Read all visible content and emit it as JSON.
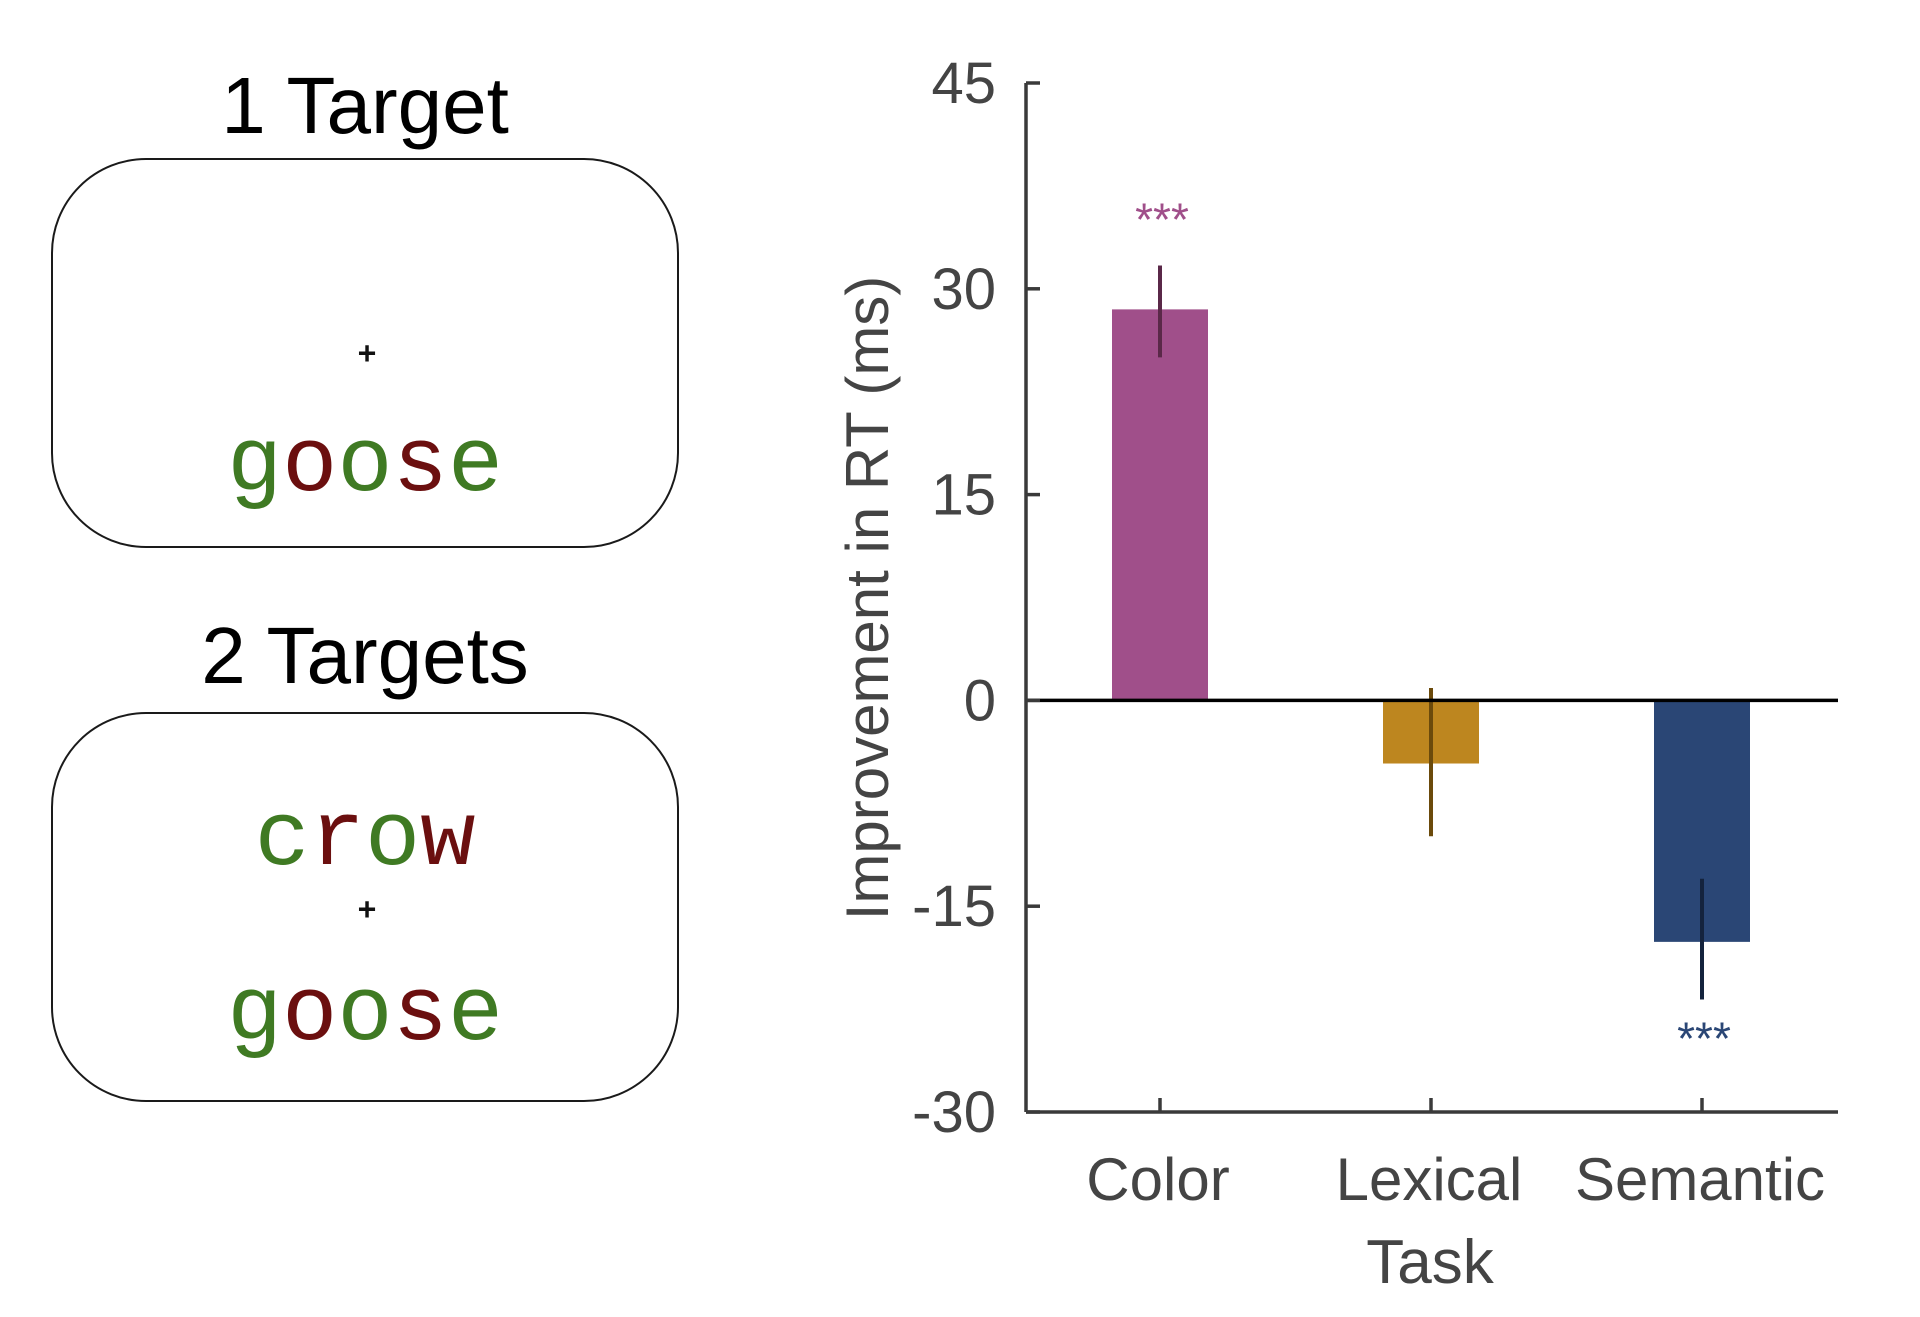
{
  "stimuli": {
    "one_target": {
      "title": "1 Target",
      "fixation": "+",
      "words": [
        {
          "letters": [
            {
              "ch": "g",
              "color": "#3f7a23"
            },
            {
              "ch": "o",
              "color": "#6b0f0f"
            },
            {
              "ch": "o",
              "color": "#3f7a23"
            },
            {
              "ch": "s",
              "color": "#6b0f0f"
            },
            {
              "ch": "e",
              "color": "#3f7a23"
            }
          ]
        }
      ]
    },
    "two_targets": {
      "title": "2 Targets",
      "fixation": "+",
      "words": [
        {
          "letters": [
            {
              "ch": "c",
              "color": "#3f7a23"
            },
            {
              "ch": "r",
              "color": "#6b0f0f"
            },
            {
              "ch": "o",
              "color": "#3f7a23"
            },
            {
              "ch": "w",
              "color": "#6b0f0f"
            }
          ]
        },
        {
          "letters": [
            {
              "ch": "g",
              "color": "#3f7a23"
            },
            {
              "ch": "o",
              "color": "#6b0f0f"
            },
            {
              "ch": "o",
              "color": "#3f7a23"
            },
            {
              "ch": "s",
              "color": "#6b0f0f"
            },
            {
              "ch": "e",
              "color": "#3f7a23"
            }
          ]
        }
      ]
    }
  },
  "chart_data": {
    "type": "bar",
    "title": "",
    "xlabel": "Task",
    "ylabel": "Improvement in RT (ms)",
    "categories": [
      "Color",
      "Lexical",
      "Semantic"
    ],
    "values": [
      28.5,
      -4.6,
      -17.6
    ],
    "error_low": [
      25.0,
      -9.9,
      -21.8
    ],
    "error_high": [
      31.7,
      0.9,
      -13.0
    ],
    "significance": [
      "***",
      "",
      "***"
    ],
    "colors": [
      "#a04f8a",
      "#bd861f",
      "#2a4675"
    ],
    "error_colors": [
      "#5a2848",
      "#6b4a0b",
      "#14233d"
    ],
    "significance_colors": [
      "#a04f8a",
      "",
      "#2a4675"
    ],
    "ylim": [
      -30,
      45
    ],
    "yticks": [
      45,
      30,
      15,
      0,
      -15,
      -30
    ],
    "ytick_labels": [
      "45",
      "30",
      "15",
      "0",
      "-15",
      "-30"
    ],
    "grid": false,
    "legend": "none"
  }
}
